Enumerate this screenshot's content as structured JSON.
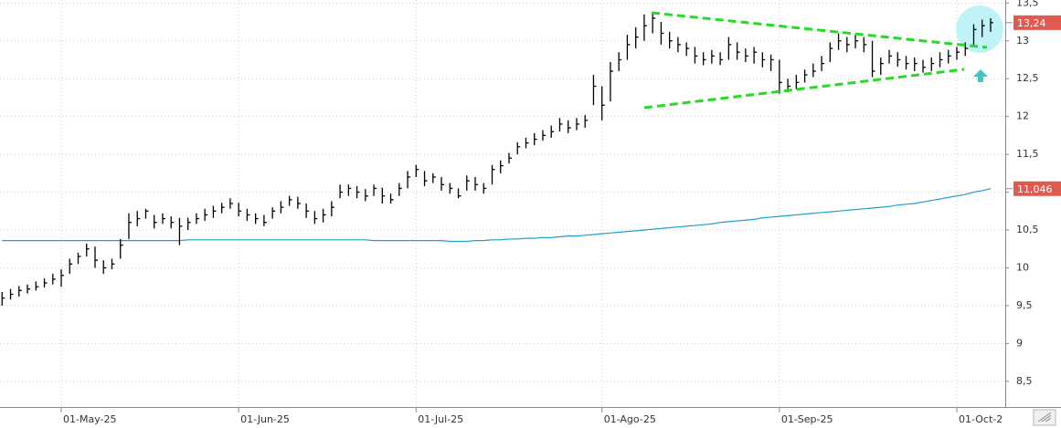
{
  "chart_data": {
    "type": "ohlc",
    "categories": [
      null,
      null,
      null,
      null,
      null,
      null,
      null,
      "01-May-25",
      null,
      null,
      null,
      null,
      null,
      null,
      null,
      null,
      null,
      null,
      null,
      null,
      null,
      null,
      null,
      null,
      null,
      null,
      null,
      null,
      "01-Jun-25",
      null,
      null,
      null,
      null,
      null,
      null,
      null,
      null,
      null,
      null,
      null,
      null,
      null,
      null,
      null,
      null,
      null,
      null,
      null,
      null,
      "01-Jul-25",
      null,
      null,
      null,
      null,
      null,
      null,
      null,
      null,
      null,
      null,
      null,
      null,
      null,
      null,
      null,
      null,
      null,
      null,
      null,
      null,
      null,
      "01-Ago-25",
      null,
      null,
      null,
      null,
      null,
      null,
      null,
      null,
      null,
      null,
      null,
      null,
      null,
      null,
      null,
      null,
      null,
      null,
      null,
      null,
      "01-Sep-25",
      null,
      null,
      null,
      null,
      null,
      null,
      null,
      null,
      null,
      null,
      null,
      null,
      null,
      null,
      null,
      null,
      null,
      null,
      null,
      null,
      "01-Oct-2",
      null,
      null,
      null,
      null
    ],
    "price": {
      "color": "#000000",
      "high": [
        9.68,
        9.72,
        9.76,
        9.78,
        9.82,
        9.86,
        9.92,
        9.98,
        10.12,
        10.2,
        10.32,
        10.28,
        10.1,
        10.12,
        10.38,
        10.72,
        10.75,
        10.78,
        10.7,
        10.72,
        10.68,
        10.66,
        10.66,
        10.72,
        10.78,
        10.82,
        10.86,
        10.92,
        10.86,
        10.78,
        10.72,
        10.7,
        10.8,
        10.88,
        10.95,
        10.94,
        10.85,
        10.75,
        10.78,
        10.88,
        11.1,
        11.1,
        11.08,
        11.04,
        11.1,
        11.06,
        10.98,
        11.12,
        11.28,
        11.36,
        11.28,
        11.25,
        11.2,
        11.12,
        11.05,
        11.22,
        11.2,
        11.12,
        11.36,
        11.42,
        11.52,
        11.66,
        11.72,
        11.78,
        11.82,
        11.88,
        11.98,
        11.95,
        11.98,
        12.02,
        12.55,
        12.4,
        12.72,
        12.85,
        13.08,
        13.18,
        13.35,
        13.36,
        13.25,
        13.12,
        13.05,
        12.98,
        12.92,
        12.85,
        12.88,
        12.85,
        13.05,
        12.98,
        12.9,
        12.92,
        12.85,
        12.82,
        12.75,
        12.5,
        12.55,
        12.62,
        12.7,
        12.8,
        12.98,
        13.1,
        13.05,
        13.08,
        13.05,
        13.0,
        12.78,
        12.88,
        12.85,
        12.8,
        12.78,
        12.75,
        12.78,
        12.85,
        12.88,
        12.92,
        12.98,
        13.22,
        13.28,
        13.3
      ],
      "low": [
        9.5,
        9.58,
        9.62,
        9.66,
        9.7,
        9.74,
        9.78,
        9.75,
        9.92,
        10.05,
        10.15,
        10.0,
        9.92,
        9.98,
        10.12,
        10.38,
        10.55,
        10.65,
        10.52,
        10.58,
        10.52,
        10.3,
        10.5,
        10.58,
        10.62,
        10.66,
        10.72,
        10.78,
        10.68,
        10.62,
        10.58,
        10.55,
        10.65,
        10.72,
        10.82,
        10.78,
        10.66,
        10.58,
        10.6,
        10.68,
        10.92,
        10.95,
        10.92,
        10.88,
        10.95,
        10.85,
        10.85,
        10.95,
        11.05,
        11.2,
        11.08,
        11.12,
        11.02,
        10.98,
        10.92,
        11.02,
        11.02,
        10.98,
        11.1,
        11.25,
        11.38,
        11.5,
        11.58,
        11.62,
        11.68,
        11.72,
        11.8,
        11.78,
        11.82,
        11.85,
        12.15,
        11.95,
        12.2,
        12.6,
        12.75,
        12.9,
        13.0,
        13.1,
        12.95,
        12.9,
        12.85,
        12.8,
        12.7,
        12.68,
        12.7,
        12.68,
        12.75,
        12.75,
        12.72,
        12.7,
        12.65,
        12.6,
        12.3,
        12.32,
        12.36,
        12.45,
        12.52,
        12.6,
        12.72,
        12.88,
        12.85,
        12.9,
        12.85,
        12.52,
        12.55,
        12.7,
        12.66,
        12.62,
        12.6,
        12.58,
        12.6,
        12.65,
        12.7,
        12.75,
        12.8,
        12.95,
        13.05,
        13.12
      ],
      "close": [
        9.6,
        9.65,
        9.7,
        9.72,
        9.75,
        9.8,
        9.85,
        9.9,
        10.05,
        10.15,
        10.25,
        10.1,
        10.0,
        10.05,
        10.3,
        10.6,
        10.65,
        10.75,
        10.6,
        10.65,
        10.6,
        10.55,
        10.6,
        10.65,
        10.7,
        10.75,
        10.8,
        10.85,
        10.75,
        10.7,
        10.65,
        10.6,
        10.75,
        10.8,
        10.9,
        10.85,
        10.75,
        10.65,
        10.7,
        10.8,
        11.0,
        11.05,
        11.0,
        10.95,
        11.05,
        10.95,
        10.9,
        11.05,
        11.2,
        11.3,
        11.15,
        11.2,
        11.1,
        11.05,
        10.95,
        11.15,
        11.1,
        11.05,
        11.3,
        11.35,
        11.45,
        11.6,
        11.65,
        11.7,
        11.75,
        11.8,
        11.9,
        11.85,
        11.9,
        11.95,
        12.4,
        12.15,
        12.6,
        12.75,
        12.95,
        13.05,
        13.2,
        13.3,
        13.1,
        13.0,
        12.95,
        12.9,
        12.8,
        12.75,
        12.8,
        12.75,
        12.95,
        12.85,
        12.8,
        12.85,
        12.75,
        12.75,
        12.45,
        12.4,
        12.45,
        12.55,
        12.6,
        12.7,
        12.9,
        13.0,
        12.95,
        13.0,
        12.95,
        12.6,
        12.7,
        12.8,
        12.75,
        12.7,
        12.7,
        12.65,
        12.7,
        12.75,
        12.8,
        12.85,
        12.9,
        13.15,
        13.2,
        13.24
      ]
    },
    "moving_average": {
      "color": "#1e9fd0",
      "values": [
        10.36,
        10.36,
        10.36,
        10.36,
        10.36,
        10.36,
        10.36,
        10.36,
        10.36,
        10.36,
        10.36,
        10.36,
        10.36,
        10.36,
        10.36,
        10.36,
        10.36,
        10.36,
        10.36,
        10.36,
        10.36,
        10.36,
        10.37,
        10.37,
        10.37,
        10.37,
        10.37,
        10.37,
        10.37,
        10.37,
        10.37,
        10.37,
        10.37,
        10.37,
        10.37,
        10.37,
        10.37,
        10.37,
        10.37,
        10.37,
        10.37,
        10.37,
        10.37,
        10.37,
        10.36,
        10.36,
        10.36,
        10.36,
        10.36,
        10.36,
        10.36,
        10.36,
        10.36,
        10.35,
        10.35,
        10.35,
        10.36,
        10.36,
        10.37,
        10.37,
        10.38,
        10.38,
        10.39,
        10.39,
        10.4,
        10.4,
        10.41,
        10.42,
        10.42,
        10.43,
        10.44,
        10.45,
        10.46,
        10.47,
        10.48,
        10.49,
        10.5,
        10.51,
        10.52,
        10.53,
        10.54,
        10.55,
        10.56,
        10.57,
        10.58,
        10.6,
        10.61,
        10.62,
        10.63,
        10.64,
        10.66,
        10.67,
        10.68,
        10.69,
        10.7,
        10.71,
        10.72,
        10.73,
        10.74,
        10.75,
        10.76,
        10.77,
        10.78,
        10.79,
        10.8,
        10.81,
        10.83,
        10.84,
        10.85,
        10.87,
        10.89,
        10.91,
        10.93,
        10.95,
        10.97,
        11.0,
        11.02,
        11.046
      ]
    },
    "price_tag": {
      "value": 13.24,
      "label": "13,24",
      "color": "#e05a50"
    },
    "ma_tag": {
      "value": 11.046,
      "label": "11,046",
      "color": "#e05a50"
    },
    "ylim": [
      8.16,
      13.54
    ],
    "yticks": [
      {
        "value": 8.5,
        "label": "8,5"
      },
      9,
      {
        "value": 9.5,
        "label": "9,5"
      },
      10,
      {
        "value": 10.5,
        "label": "10,5"
      },
      11,
      {
        "value": 11.5,
        "label": "11,5"
      },
      12,
      {
        "value": 12.5,
        "label": "12,5"
      },
      13,
      {
        "value": 13.5,
        "label": "13,5"
      }
    ],
    "grid": true
  }
}
